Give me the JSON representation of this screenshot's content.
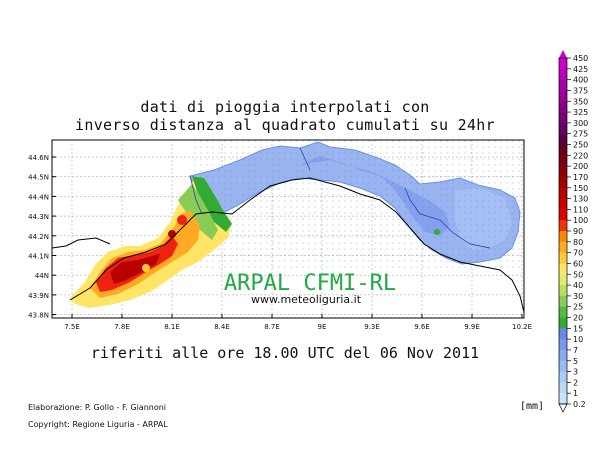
{
  "title_line1": "dati di pioggia interpolati con",
  "title_line2": "inverso distanza al quadrato cumulati su 24hr",
  "subtitle": "riferiti alle ore 18.00 UTC del 06 Nov 2011",
  "watermark": "ARPAL CFMI-RL",
  "website": "www.meteoliguria.it",
  "credit_line1": "Elaborazione: P. Gollo - F. Giannoni",
  "credit_line2": "Copyright: Regione Liguria - ARPAL",
  "unit_label": "[mm]",
  "lat_labels": [
    "44.6N",
    "44.5N",
    "44.4N",
    "44.3N",
    "44.2N",
    "44.1N",
    "44N",
    "43.9N",
    "43.8N"
  ],
  "lon_labels": [
    "7.5E",
    "7.8E",
    "8.1E",
    "8.4E",
    "8.7E",
    "9E",
    "9.3E",
    "9.6E",
    "9.9E",
    "10.2E"
  ],
  "legend": [
    {
      "value": "450",
      "color": "#cc00cc"
    },
    {
      "value": "425",
      "color": "#b800b8"
    },
    {
      "value": "400",
      "color": "#a800a8"
    },
    {
      "value": "375",
      "color": "#9a0099"
    },
    {
      "value": "350",
      "color": "#880088"
    },
    {
      "value": "325",
      "color": "#770077"
    },
    {
      "value": "300",
      "color": "#660066"
    },
    {
      "value": "275",
      "color": "#5a0044"
    },
    {
      "value": "250",
      "color": "#660022"
    },
    {
      "value": "220",
      "color": "#7a0011"
    },
    {
      "value": "200",
      "color": "#8c0000"
    },
    {
      "value": "170",
      "color": "#a00000"
    },
    {
      "value": "150",
      "color": "#b80000"
    },
    {
      "value": "130",
      "color": "#cc0000"
    },
    {
      "value": "110",
      "color": "#e00000"
    },
    {
      "value": "100",
      "color": "#ee3311"
    },
    {
      "value": "90",
      "color": "#ff8800"
    },
    {
      "value": "80",
      "color": "#ffaa22"
    },
    {
      "value": "70",
      "color": "#ffcc33"
    },
    {
      "value": "60",
      "color": "#ffe566"
    },
    {
      "value": "50",
      "color": "#ddee77"
    },
    {
      "value": "40",
      "color": "#bbdd66"
    },
    {
      "value": "30",
      "color": "#88cc55"
    },
    {
      "value": "25",
      "color": "#55bb44"
    },
    {
      "value": "20",
      "color": "#33aa33"
    },
    {
      "value": "15",
      "color": "#6688ee"
    },
    {
      "value": "10",
      "color": "#7799ee"
    },
    {
      "value": "7",
      "color": "#88aaee"
    },
    {
      "value": "5",
      "color": "#99bbf2"
    },
    {
      "value": "3",
      "color": "#aaccf5"
    },
    {
      "value": "2",
      "color": "#bbd8f7"
    },
    {
      "value": "1",
      "color": "#cce4fa"
    },
    {
      "value": "0.2",
      "color": "#ffffff"
    }
  ]
}
